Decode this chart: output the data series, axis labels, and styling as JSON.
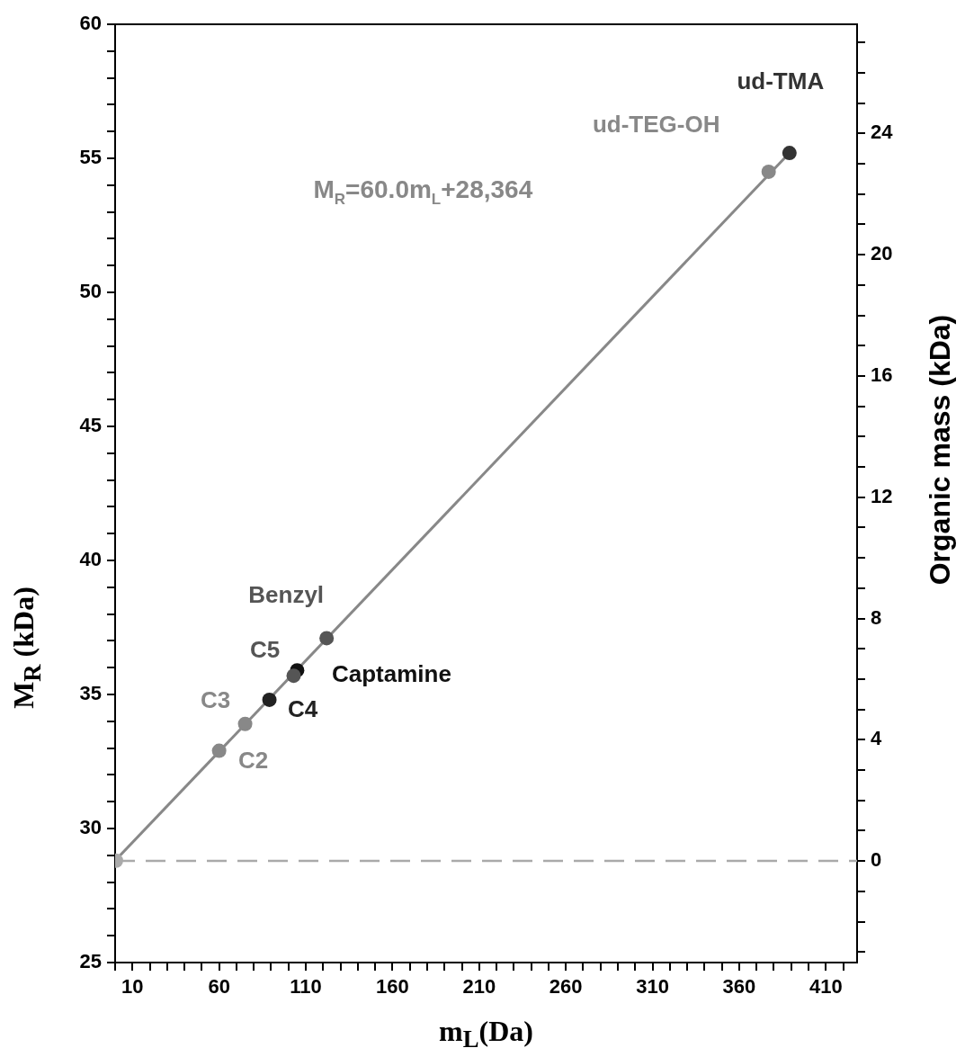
{
  "chart_data": {
    "type": "scatter",
    "xlabel": "m$_{L}$(Da)",
    "ylabel": "M$_{R}$ (kDa)",
    "y2label": "Organic mass (kDa)",
    "xlim": [
      0,
      428
    ],
    "ylim": [
      25,
      60
    ],
    "y2lim": [
      -3.35,
      27.6
    ],
    "xticks": [
      {
        "value": 0,
        "label": null
      },
      10,
      {
        "value": 20,
        "label": null
      },
      {
        "value": 30,
        "label": null
      },
      {
        "value": 40,
        "label": null
      },
      {
        "value": 50,
        "label": null
      },
      60,
      {
        "value": 70,
        "label": null
      },
      {
        "value": 80,
        "label": null
      },
      {
        "value": 90,
        "label": null
      },
      {
        "value": 100,
        "label": null
      },
      110,
      {
        "value": 120,
        "label": null
      },
      {
        "value": 130,
        "label": null
      },
      {
        "value": 140,
        "label": null
      },
      {
        "value": 150,
        "label": null
      },
      160,
      {
        "value": 170,
        "label": null
      },
      {
        "value": 180,
        "label": null
      },
      {
        "value": 190,
        "label": null
      },
      {
        "value": 200,
        "label": null
      },
      210,
      {
        "value": 220,
        "label": null
      },
      {
        "value": 230,
        "label": null
      },
      {
        "value": 240,
        "label": null
      },
      {
        "value": 250,
        "label": null
      },
      260,
      {
        "value": 270,
        "label": null
      },
      {
        "value": 280,
        "label": null
      },
      {
        "value": 290,
        "label": null
      },
      {
        "value": 300,
        "label": null
      },
      310,
      {
        "value": 320,
        "label": null
      },
      {
        "value": 330,
        "label": null
      },
      {
        "value": 340,
        "label": null
      },
      {
        "value": 350,
        "label": null
      },
      360,
      {
        "value": 370,
        "label": null
      },
      {
        "value": 380,
        "label": null
      },
      {
        "value": 390,
        "label": null
      },
      {
        "value": 400,
        "label": null
      },
      410,
      {
        "value": 420,
        "label": null
      }
    ],
    "yticks": [
      25,
      {
        "value": 26,
        "label": null
      },
      {
        "value": 27,
        "label": null
      },
      {
        "value": 28,
        "label": null
      },
      {
        "value": 29,
        "label": null
      },
      30,
      {
        "value": 31,
        "label": null
      },
      {
        "value": 32,
        "label": null
      },
      {
        "value": 33,
        "label": null
      },
      {
        "value": 34,
        "label": null
      },
      35,
      {
        "value": 36,
        "label": null
      },
      {
        "value": 37,
        "label": null
      },
      {
        "value": 38,
        "label": null
      },
      {
        "value": 39,
        "label": null
      },
      40,
      {
        "value": 41,
        "label": null
      },
      {
        "value": 42,
        "label": null
      },
      {
        "value": 43,
        "label": null
      },
      {
        "value": 44,
        "label": null
      },
      45,
      {
        "value": 46,
        "label": null
      },
      {
        "value": 47,
        "label": null
      },
      {
        "value": 48,
        "label": null
      },
      {
        "value": 49,
        "label": null
      },
      50,
      {
        "value": 51,
        "label": null
      },
      {
        "value": 52,
        "label": null
      },
      {
        "value": 53,
        "label": null
      },
      {
        "value": 54,
        "label": null
      },
      55,
      {
        "value": 56,
        "label": null
      },
      {
        "value": 57,
        "label": null
      },
      {
        "value": 58,
        "label": null
      },
      {
        "value": 59,
        "label": null
      },
      60
    ],
    "y2ticks": [
      {
        "value": -3,
        "label": null
      },
      {
        "value": -2,
        "label": null
      },
      {
        "value": -1,
        "label": null
      },
      0,
      {
        "value": 1,
        "label": null
      },
      {
        "value": 2,
        "label": null
      },
      {
        "value": 3,
        "label": null
      },
      4,
      {
        "value": 5,
        "label": null
      },
      {
        "value": 6,
        "label": null
      },
      {
        "value": 7,
        "label": null
      },
      8,
      {
        "value": 9,
        "label": null
      },
      {
        "value": 10,
        "label": null
      },
      {
        "value": 11,
        "label": null
      },
      12,
      {
        "value": 13,
        "label": null
      },
      {
        "value": 14,
        "label": null
      },
      {
        "value": 15,
        "label": null
      },
      16,
      {
        "value": 17,
        "label": null
      },
      {
        "value": 18,
        "label": null
      },
      {
        "value": 19,
        "label": null
      },
      20,
      {
        "value": 21,
        "label": null
      },
      {
        "value": 22,
        "label": null
      },
      {
        "value": 23,
        "label": null
      },
      24,
      {
        "value": 25,
        "label": null
      },
      {
        "value": 26,
        "label": null
      },
      {
        "value": 27,
        "label": null
      }
    ],
    "grid": false,
    "legend": false,
    "marker": "circle",
    "ref_lines": [
      {
        "axis": "y2",
        "value": 0,
        "color": "#aaaaaa",
        "line_style": "dashed"
      }
    ],
    "annotations": [
      "M$_{R}$=60.0m$_{L}$+28,364"
    ],
    "series": [
      {
        "type": "line",
        "marker": "none",
        "color": "#888888",
        "x": [
          0,
          389
        ],
        "values": [
          28.8,
          55.2
        ]
      },
      {
        "color": "#aaaaaa",
        "x": [
          0.5
        ],
        "values": [
          28.8
        ]
      },
      {
        "name": "C2",
        "color": "#888888",
        "x": [
          60
        ],
        "values": [
          32.9
        ]
      },
      {
        "name": "C3",
        "color": "#888888",
        "x": [
          75
        ],
        "values": [
          33.9
        ]
      },
      {
        "name": "C4",
        "color": "#222222",
        "x": [
          89
        ],
        "values": [
          34.8
        ]
      },
      {
        "name": "C5",
        "color": "#555555",
        "x": [
          103
        ],
        "values": [
          35.7
        ]
      },
      {
        "name": "Captamine",
        "color": "#111111",
        "x": [
          105
        ],
        "values": [
          35.9
        ]
      },
      {
        "name": "Benzyl",
        "color": "#555555",
        "x": [
          122
        ],
        "values": [
          37.1
        ]
      },
      {
        "name": "ud-TEG-OH",
        "color": "#888888",
        "x": [
          377
        ],
        "values": [
          54.5
        ]
      },
      {
        "name": "ud-TMA",
        "color": "#333333",
        "x": [
          389
        ],
        "values": [
          55.2
        ]
      }
    ]
  }
}
